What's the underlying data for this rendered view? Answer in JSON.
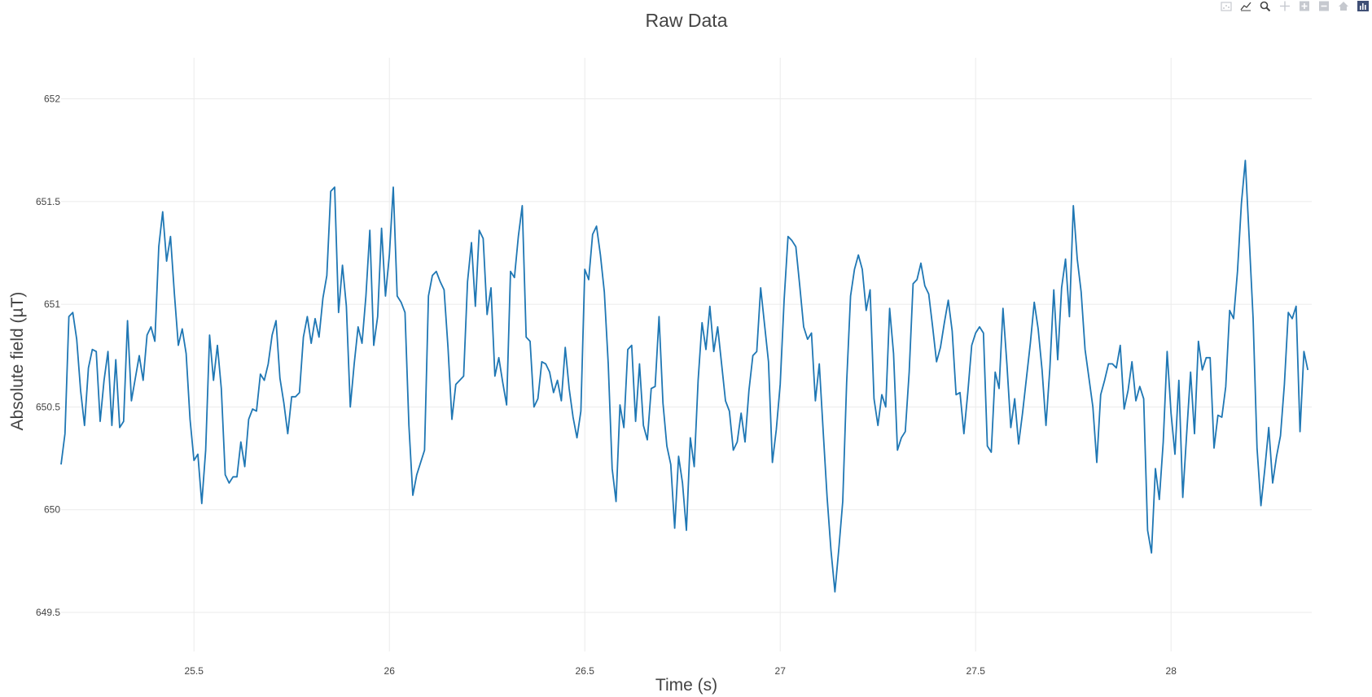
{
  "modebar": {
    "buttons": [
      "download-plot-icon",
      "toggle-spike-lines-icon",
      "zoom-icon",
      "pan-icon",
      "zoom-in-icon",
      "zoom-out-icon",
      "reset-axes-icon",
      "plotly-logo-icon"
    ],
    "icon_color": "#c6c9cf",
    "active_color": "#444444",
    "logo_color": "#3f4f75"
  },
  "chart_data": {
    "type": "line",
    "title": "Raw Data",
    "xlabel": "Time (s)",
    "ylabel": "Absolute field (µT)",
    "xlim": [
      25.16,
      28.36
    ],
    "ylim": [
      649.31,
      652.2
    ],
    "xticks": [
      25.5,
      26,
      26.5,
      27,
      27.5,
      28
    ],
    "xtick_labels": [
      "25.5",
      "26",
      "26.5",
      "27",
      "27.5",
      "28"
    ],
    "yticks": [
      649.5,
      650,
      650.5,
      651,
      651.5,
      652
    ],
    "ytick_labels": [
      "649.5",
      "650",
      "650.5",
      "651",
      "651.5",
      "652"
    ],
    "grid": true,
    "legend": "none",
    "line_color": "#1f77b4",
    "series": [
      {
        "x_start": 25.16,
        "x_step": 0.01,
        "values": [
          650.22,
          650.37,
          650.94,
          650.96,
          650.83,
          650.58,
          650.41,
          650.69,
          650.78,
          650.77,
          650.43,
          650.63,
          650.77,
          650.41,
          650.73,
          650.4,
          650.43,
          650.92,
          650.53,
          650.64,
          650.75,
          650.63,
          650.85,
          650.89,
          650.82,
          651.28,
          651.45,
          651.21,
          651.33,
          651.05,
          650.8,
          650.88,
          650.76,
          650.44,
          650.24,
          650.27,
          650.03,
          650.29,
          650.85,
          650.63,
          650.8,
          650.59,
          650.17,
          650.13,
          650.16,
          650.16,
          650.33,
          650.21,
          650.44,
          650.49,
          650.48,
          650.66,
          650.63,
          650.71,
          650.85,
          650.92,
          650.64,
          650.52,
          650.37,
          650.55,
          650.55,
          650.57,
          650.84,
          650.94,
          650.81,
          650.93,
          650.84,
          651.03,
          651.14,
          651.55,
          651.57,
          650.96,
          651.19,
          650.99,
          650.5,
          650.71,
          650.89,
          650.81,
          651.04,
          651.36,
          650.8,
          650.94,
          651.37,
          651.04,
          651.24,
          651.57,
          651.04,
          651.01,
          650.96,
          650.41,
          650.07,
          650.17,
          650.23,
          650.29,
          651.04,
          651.14,
          651.16,
          651.11,
          651.07,
          650.79,
          650.44,
          650.61,
          650.63,
          650.65,
          651.11,
          651.3,
          650.99,
          651.36,
          651.32,
          650.95,
          651.08,
          650.65,
          650.74,
          650.62,
          650.51,
          651.16,
          651.13,
          651.33,
          651.48,
          650.84,
          650.82,
          650.5,
          650.54,
          650.72,
          650.71,
          650.67,
          650.57,
          650.63,
          650.53,
          650.79,
          650.59,
          650.45,
          650.35,
          650.48,
          651.17,
          651.12,
          651.34,
          651.38,
          651.24,
          651.06,
          650.71,
          650.2,
          650.04,
          650.51,
          650.4,
          650.78,
          650.8,
          650.43,
          650.71,
          650.41,
          650.34,
          650.59,
          650.6,
          650.94,
          650.52,
          650.31,
          650.22,
          649.91,
          650.26,
          650.13,
          649.9,
          650.35,
          650.21,
          650.63,
          650.91,
          650.78,
          650.99,
          650.77,
          650.89,
          650.71,
          650.53,
          650.48,
          650.29,
          650.33,
          650.47,
          650.33,
          650.58,
          650.75,
          650.77,
          651.08,
          650.9,
          650.72,
          650.23,
          650.39,
          650.61,
          651.02,
          651.33,
          651.31,
          651.28,
          651.09,
          650.89,
          650.83,
          650.86,
          650.53,
          650.71,
          650.38,
          650.06,
          649.8,
          649.6,
          649.81,
          650.04,
          650.62,
          651.04,
          651.17,
          651.24,
          651.17,
          650.97,
          651.07,
          650.54,
          650.41,
          650.56,
          650.5,
          650.98,
          650.76,
          650.29,
          650.35,
          650.38,
          650.67,
          651.1,
          651.12,
          651.2,
          651.09,
          651.05,
          650.89,
          650.72,
          650.79,
          650.91,
          651.02,
          650.87,
          650.56,
          650.57,
          650.37,
          650.57,
          650.8,
          650.86,
          650.89,
          650.86,
          650.31,
          650.28,
          650.67,
          650.59,
          650.98,
          650.71,
          650.4,
          650.54,
          650.32,
          650.47,
          650.64,
          650.81,
          651.01,
          650.88,
          650.68,
          650.41,
          650.69,
          651.07,
          650.73,
          651.08,
          651.22,
          650.94,
          651.48,
          651.22,
          651.06,
          650.78,
          650.64,
          650.5,
          650.23,
          650.56,
          650.63,
          650.71,
          650.71,
          650.69,
          650.8,
          650.49,
          650.58,
          650.72,
          650.53,
          650.6,
          650.54,
          649.9,
          649.79,
          650.2,
          650.05,
          650.33,
          650.77,
          650.47,
          650.27,
          650.63,
          650.06,
          650.37,
          650.67,
          650.37,
          650.82,
          650.68,
          650.74,
          650.74,
          650.3,
          650.46,
          650.45,
          650.6,
          650.97,
          650.93,
          651.16,
          651.49,
          651.7,
          651.32,
          650.93,
          650.3,
          650.02,
          650.2,
          650.4,
          650.13,
          650.26,
          650.36,
          650.61,
          650.96,
          650.93,
          650.99,
          650.38,
          650.77,
          650.68
        ]
      }
    ]
  }
}
